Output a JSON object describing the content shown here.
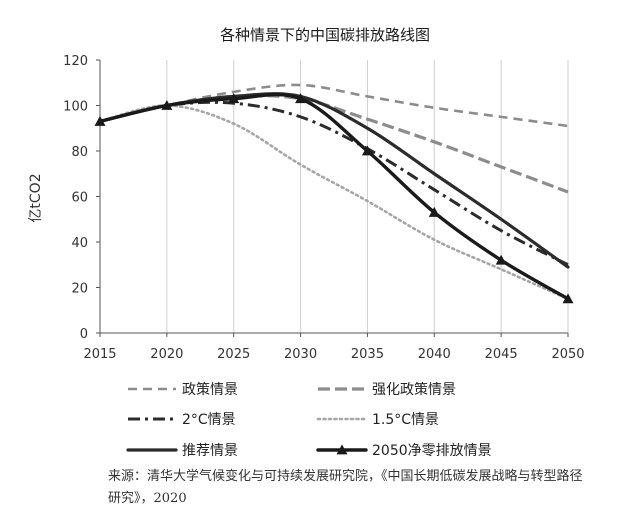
{
  "chart_data": {
    "type": "line",
    "title": "各种情景下的中国碳排放路线图",
    "ylabel": "亿tCO2",
    "xlabel": "",
    "x": [
      2015,
      2020,
      2025,
      2030,
      2035,
      2040,
      2045,
      2050
    ],
    "xlim": [
      2015,
      2050
    ],
    "ylim": [
      0,
      120
    ],
    "yticks": [
      0,
      20,
      40,
      60,
      80,
      100,
      120
    ],
    "grid": "vertical",
    "legend_position": "bottom",
    "series": [
      {
        "name": "政策情景",
        "style": "dashed-light",
        "color": "#8c8c8c",
        "values": [
          93,
          100,
          106,
          109,
          104,
          99,
          95,
          91
        ]
      },
      {
        "name": "强化政策情景",
        "style": "dashed-long",
        "color": "#8c8c8c",
        "values": [
          93,
          100,
          104,
          103,
          94,
          84,
          73,
          62
        ]
      },
      {
        "name": "2°C情景",
        "style": "dashdot",
        "color": "#2b2b2b",
        "values": [
          93,
          100,
          101,
          95,
          81,
          63,
          45,
          30
        ]
      },
      {
        "name": "1.5°C情景",
        "style": "dotted",
        "color": "#a6a6a6",
        "values": [
          93,
          100,
          92,
          74,
          58,
          41,
          28,
          15
        ]
      },
      {
        "name": "推荐情景",
        "style": "solid",
        "color": "#2b2b2b",
        "values": [
          93,
          100,
          104,
          104,
          90,
          70,
          50,
          29
        ]
      },
      {
        "name": "2050净零排放情景",
        "style": "solid-triangle",
        "color": "#1a1a1a",
        "values": [
          93,
          100,
          103,
          103,
          80,
          53,
          32,
          15
        ]
      }
    ]
  },
  "source_text": "来源：清华大学气候变化与可持续发展研究院，《中国长期低碳发展战略与转型路径研究》，2020"
}
